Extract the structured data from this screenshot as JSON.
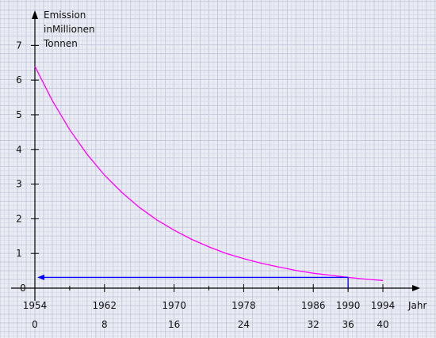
{
  "chart_data": {
    "type": "line",
    "title": "",
    "ylabel_lines": [
      "Emission",
      "inMillionen",
      "Tonnen"
    ],
    "xlabel": "Jahr",
    "x_years": [
      1954,
      1962,
      1970,
      1978,
      1986,
      1990,
      1994
    ],
    "x_offsets": [
      0,
      8,
      16,
      24,
      32,
      36,
      40
    ],
    "highlight_year": 1990,
    "highlight_offset": 36,
    "y_ticks": [
      1,
      2,
      3,
      4,
      5,
      6,
      7
    ],
    "origin_y_label": "0",
    "xlim": [
      0,
      42
    ],
    "ylim": [
      0,
      7.5
    ],
    "grid": true,
    "series": [
      {
        "x": [
          0,
          2,
          4,
          6,
          8,
          10,
          12,
          14,
          16,
          18,
          20,
          22,
          24,
          26,
          28,
          30,
          32,
          34,
          36,
          38,
          40
        ],
        "y": [
          6.4,
          5.41,
          4.57,
          3.86,
          3.26,
          2.76,
          2.33,
          1.97,
          1.67,
          1.41,
          1.19,
          1.0,
          0.85,
          0.72,
          0.61,
          0.51,
          0.43,
          0.37,
          0.31,
          0.26,
          0.22
        ]
      }
    ],
    "marker_line": {
      "x_from": 36,
      "x_to": 0,
      "y": 0.31
    },
    "colors": {
      "curve": "#ff00ff",
      "marker": "#0000ff",
      "highlight_text": "#e00000",
      "grid_minor": "#d3d6e6",
      "grid_major": "#c3c6d9",
      "axis": "#000000",
      "background": "#e9ecf3"
    }
  }
}
